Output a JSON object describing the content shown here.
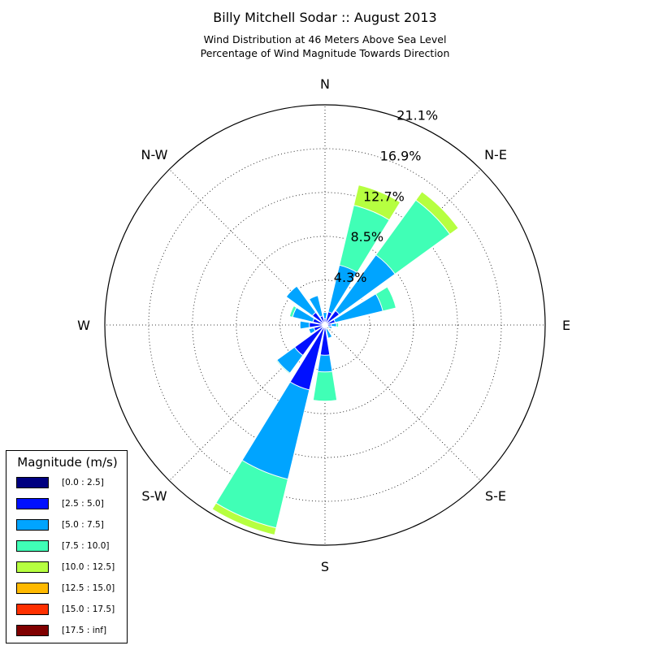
{
  "title": "Billy Mitchell Sodar :: August 2013",
  "subtitle_line1": "Wind Distribution at 46 Meters Above Sea Level",
  "subtitle_line2": "Percentage of Wind Magnitude Towards Direction",
  "chart_data": {
    "type": "windrose",
    "title": "Billy Mitchell Sodar :: August 2013",
    "subtitle": [
      "Wind Distribution at 46 Meters Above Sea Level",
      "Percentage of Wind Magnitude Towards Direction"
    ],
    "directions": [
      "N",
      "NNE",
      "NE",
      "ENE",
      "E",
      "ESE",
      "SE",
      "SSE",
      "S",
      "SSW",
      "SW",
      "WSW",
      "W",
      "WNW",
      "NW",
      "NNW"
    ],
    "direction_labels": [
      "N",
      "N-E",
      "E",
      "S-E",
      "S",
      "S-W",
      "W",
      "N-W"
    ],
    "radial_ticks": [
      "4.3%",
      "8.5%",
      "12.7%",
      "16.9%",
      "21.1%"
    ],
    "radial_values": [
      4.3,
      8.5,
      12.7,
      16.9,
      21.1
    ],
    "rmax": 21.1,
    "grid": true,
    "legend_title": "Magnitude (m/s)",
    "legend_position": "lower-left",
    "bins": [
      {
        "label": "[0.0 : 2.5]",
        "color": "#000080"
      },
      {
        "label": "[2.5 : 5.0]",
        "color": "#0010ff"
      },
      {
        "label": "[5.0 : 7.5]",
        "color": "#00a4ff"
      },
      {
        "label": "[7.5 : 10.0]",
        "color": "#40ffb6"
      },
      {
        "label": "[10.0 : 12.5]",
        "color": "#b6ff40"
      },
      {
        "label": "[12.5 : 15.0]",
        "color": "#ffb900"
      },
      {
        "label": "[15.0 : 17.5]",
        "color": "#ff3000"
      },
      {
        "label": "[17.5 : inf]",
        "color": "#800000"
      }
    ],
    "cumulative_percent": [
      [
        0.1,
        0.6,
        1.2,
        1.2,
        1.2,
        1.2,
        1.2,
        1.2
      ],
      [
        0.1,
        1.3,
        5.9,
        11.8,
        13.8,
        13.8,
        13.8,
        13.8
      ],
      [
        0.2,
        1.7,
        8.3,
        14.8,
        15.8,
        15.8,
        15.8,
        15.8
      ],
      [
        0.1,
        1.0,
        5.7,
        7.0,
        7.0,
        7.0,
        7.0,
        7.0
      ],
      [
        0.1,
        0.6,
        1.1,
        1.3,
        1.3,
        1.3,
        1.3,
        1.3
      ],
      [
        0.1,
        0.3,
        0.7,
        0.7,
        0.7,
        0.7,
        0.7,
        0.7
      ],
      [
        0.1,
        0.2,
        0.3,
        0.3,
        0.3,
        0.3,
        0.3,
        0.3
      ],
      [
        0.1,
        0.4,
        1.3,
        1.3,
        1.3,
        1.3,
        1.3,
        1.3
      ],
      [
        0.2,
        2.9,
        4.5,
        7.3,
        7.3,
        7.3,
        7.3,
        7.3
      ],
      [
        0.2,
        6.4,
        15.2,
        20.0,
        20.7,
        20.7,
        20.7,
        20.7
      ],
      [
        0.3,
        3.6,
        5.7,
        5.8,
        5.8,
        5.8,
        5.8,
        5.8
      ],
      [
        0.2,
        1.1,
        1.6,
        1.6,
        1.6,
        1.6,
        1.6,
        1.6
      ],
      [
        0.2,
        1.5,
        2.4,
        2.4,
        2.4,
        2.4,
        2.4,
        2.4
      ],
      [
        0.2,
        1.2,
        3.2,
        3.5,
        3.5,
        3.5,
        3.5,
        3.5
      ],
      [
        0.2,
        1.5,
        4.6,
        4.6,
        4.6,
        4.6,
        4.6,
        4.6
      ],
      [
        0.1,
        0.9,
        2.9,
        2.9,
        2.9,
        2.9,
        2.9,
        2.9
      ]
    ]
  }
}
